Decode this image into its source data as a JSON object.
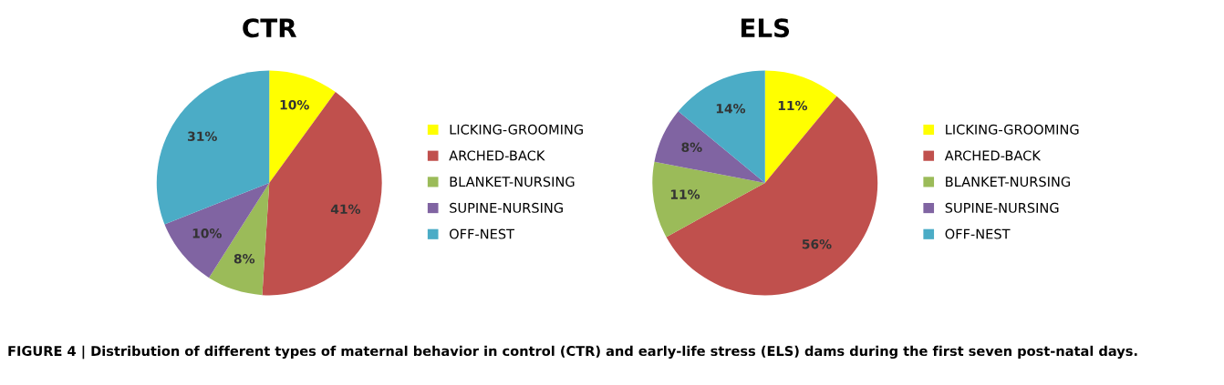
{
  "chart_data": [
    {
      "type": "pie",
      "title": "CTR",
      "categories": [
        "LICKING-GROOMING",
        "ARCHED-BACK",
        "BLANKET-NURSING",
        "SUPINE-NURSING",
        "OFF-NEST"
      ],
      "values": [
        10,
        41,
        8,
        10,
        31
      ],
      "value_labels": [
        "10%",
        "41%",
        "8%",
        "10%",
        "31%"
      ],
      "colors": [
        "#ffff00",
        "#c0504d",
        "#9bbb59",
        "#8064a2",
        "#4bacc6"
      ],
      "legend": "right",
      "annotations": [
        "FIGURE 4 | Distribution of different types of maternal behavior in control (CTR) and early-life stress (ELS) dams during the first seven post-natal days."
      ]
    },
    {
      "type": "pie",
      "title": "ELS",
      "categories": [
        "LICKING-GROOMING",
        "ARCHED-BACK",
        "BLANKET-NURSING",
        "SUPINE-NURSING",
        "OFF-NEST"
      ],
      "values": [
        11,
        56,
        11,
        8,
        14
      ],
      "value_labels": [
        "11%",
        "56%",
        "11%",
        "8%",
        "14%"
      ],
      "colors": [
        "#ffff00",
        "#c0504d",
        "#9bbb59",
        "#8064a2",
        "#4bacc6"
      ],
      "legend": "right"
    }
  ]
}
